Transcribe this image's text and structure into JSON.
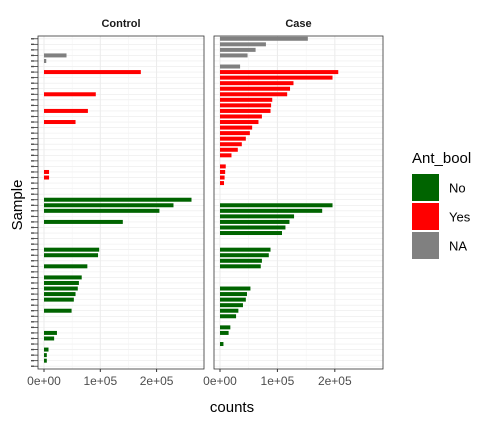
{
  "chart_data": {
    "type": "bar",
    "orientation": "horizontal",
    "xlabel": "counts",
    "ylabel": "Sample",
    "xlim": [
      0,
      270000
    ],
    "x_ticks": [
      0,
      100000,
      200000
    ],
    "x_tick_labels": [
      "0e+00",
      "1e+05",
      "2e+05"
    ],
    "n_samples": 60,
    "legend": {
      "title": "Ant_bool",
      "position": "right",
      "entries": [
        {
          "label": "No",
          "color": "#006400"
        },
        {
          "label": "Yes",
          "color": "#ff0000"
        },
        {
          "label": "NA",
          "color": "#808080"
        }
      ]
    },
    "panels": [
      {
        "name": "Control",
        "bars": [
          {
            "sample": 4,
            "value": 40000,
            "group": "NA"
          },
          {
            "sample": 5,
            "value": 4000,
            "group": "NA"
          },
          {
            "sample": 7,
            "value": 172000,
            "group": "Yes"
          },
          {
            "sample": 11,
            "value": 92000,
            "group": "Yes"
          },
          {
            "sample": 14,
            "value": 78000,
            "group": "Yes"
          },
          {
            "sample": 16,
            "value": 56000,
            "group": "Yes"
          },
          {
            "sample": 25,
            "value": 9000,
            "group": "Yes"
          },
          {
            "sample": 26,
            "value": 9000,
            "group": "Yes"
          },
          {
            "sample": 30,
            "value": 262000,
            "group": "No"
          },
          {
            "sample": 31,
            "value": 230000,
            "group": "No"
          },
          {
            "sample": 32,
            "value": 205000,
            "group": "No"
          },
          {
            "sample": 34,
            "value": 140000,
            "group": "No"
          },
          {
            "sample": 39,
            "value": 98000,
            "group": "No"
          },
          {
            "sample": 40,
            "value": 96000,
            "group": "No"
          },
          {
            "sample": 42,
            "value": 77000,
            "group": "No"
          },
          {
            "sample": 44,
            "value": 67000,
            "group": "No"
          },
          {
            "sample": 45,
            "value": 62000,
            "group": "No"
          },
          {
            "sample": 46,
            "value": 60000,
            "group": "No"
          },
          {
            "sample": 47,
            "value": 56000,
            "group": "No"
          },
          {
            "sample": 48,
            "value": 53000,
            "group": "No"
          },
          {
            "sample": 50,
            "value": 49000,
            "group": "No"
          },
          {
            "sample": 54,
            "value": 23000,
            "group": "No"
          },
          {
            "sample": 55,
            "value": 18000,
            "group": "No"
          },
          {
            "sample": 57,
            "value": 8000,
            "group": "No"
          },
          {
            "sample": 58,
            "value": 5000,
            "group": "No"
          },
          {
            "sample": 59,
            "value": 5000,
            "group": "No"
          }
        ]
      },
      {
        "name": "Case",
        "bars": [
          {
            "sample": 1,
            "value": 153000,
            "group": "NA"
          },
          {
            "sample": 2,
            "value": 80000,
            "group": "NA"
          },
          {
            "sample": 3,
            "value": 62000,
            "group": "NA"
          },
          {
            "sample": 4,
            "value": 48000,
            "group": "NA"
          },
          {
            "sample": 6,
            "value": 35000,
            "group": "NA"
          },
          {
            "sample": 7,
            "value": 206000,
            "group": "Yes"
          },
          {
            "sample": 8,
            "value": 196000,
            "group": "Yes"
          },
          {
            "sample": 9,
            "value": 128000,
            "group": "Yes"
          },
          {
            "sample": 10,
            "value": 122000,
            "group": "Yes"
          },
          {
            "sample": 11,
            "value": 117000,
            "group": "Yes"
          },
          {
            "sample": 12,
            "value": 91000,
            "group": "Yes"
          },
          {
            "sample": 13,
            "value": 89000,
            "group": "Yes"
          },
          {
            "sample": 14,
            "value": 88000,
            "group": "Yes"
          },
          {
            "sample": 15,
            "value": 73000,
            "group": "Yes"
          },
          {
            "sample": 16,
            "value": 67000,
            "group": "Yes"
          },
          {
            "sample": 17,
            "value": 56000,
            "group": "Yes"
          },
          {
            "sample": 18,
            "value": 52000,
            "group": "Yes"
          },
          {
            "sample": 19,
            "value": 45000,
            "group": "Yes"
          },
          {
            "sample": 20,
            "value": 38000,
            "group": "Yes"
          },
          {
            "sample": 21,
            "value": 31000,
            "group": "Yes"
          },
          {
            "sample": 22,
            "value": 20000,
            "group": "Yes"
          },
          {
            "sample": 24,
            "value": 10000,
            "group": "Yes"
          },
          {
            "sample": 25,
            "value": 9000,
            "group": "Yes"
          },
          {
            "sample": 26,
            "value": 8000,
            "group": "Yes"
          },
          {
            "sample": 27,
            "value": 7000,
            "group": "Yes"
          },
          {
            "sample": 31,
            "value": 196000,
            "group": "No"
          },
          {
            "sample": 32,
            "value": 178000,
            "group": "No"
          },
          {
            "sample": 33,
            "value": 129000,
            "group": "No"
          },
          {
            "sample": 34,
            "value": 121000,
            "group": "No"
          },
          {
            "sample": 35,
            "value": 114000,
            "group": "No"
          },
          {
            "sample": 36,
            "value": 108000,
            "group": "No"
          },
          {
            "sample": 39,
            "value": 88000,
            "group": "No"
          },
          {
            "sample": 40,
            "value": 85000,
            "group": "No"
          },
          {
            "sample": 41,
            "value": 73000,
            "group": "No"
          },
          {
            "sample": 42,
            "value": 71000,
            "group": "No"
          },
          {
            "sample": 46,
            "value": 53000,
            "group": "No"
          },
          {
            "sample": 47,
            "value": 47000,
            "group": "No"
          },
          {
            "sample": 48,
            "value": 45000,
            "group": "No"
          },
          {
            "sample": 49,
            "value": 40000,
            "group": "No"
          },
          {
            "sample": 50,
            "value": 32000,
            "group": "No"
          },
          {
            "sample": 51,
            "value": 28000,
            "group": "No"
          },
          {
            "sample": 53,
            "value": 18000,
            "group": "No"
          },
          {
            "sample": 54,
            "value": 15000,
            "group": "No"
          },
          {
            "sample": 56,
            "value": 6000,
            "group": "No"
          }
        ]
      }
    ]
  }
}
